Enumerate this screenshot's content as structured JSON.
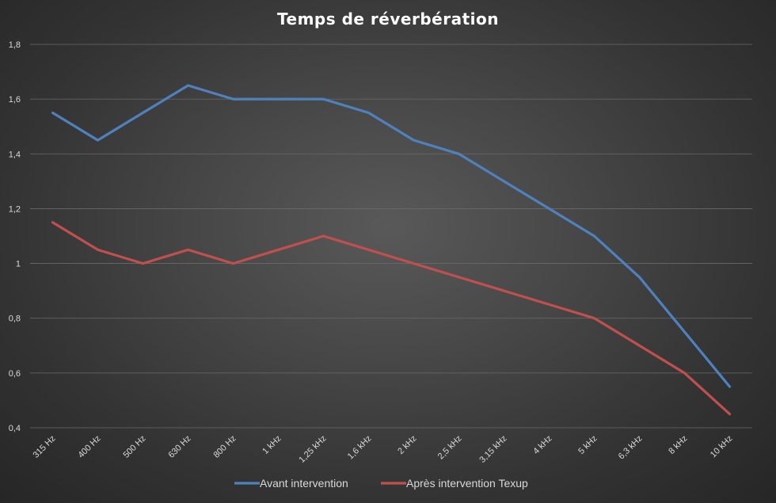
{
  "chart_data": {
    "type": "line",
    "title": "Temps de réverbération",
    "xlabel": "",
    "ylabel": "",
    "ylim": [
      0.4,
      1.8
    ],
    "yticks": [
      "0,4",
      "0,6",
      "0,8",
      "1",
      "1,2",
      "1,4",
      "1,6",
      "1,8"
    ],
    "ytick_values": [
      0.4,
      0.6,
      0.8,
      1.0,
      1.2,
      1.4,
      1.6,
      1.8
    ],
    "categories": [
      "315 Hz",
      "400 Hz",
      "500 Hz",
      "630 Hz",
      "800 Hz",
      "1 kHz",
      "1,25 kHz",
      "1,6 kHz",
      "2 kHz",
      "2,5 kHz",
      "3,15 kHz",
      "4 kHz",
      "5 kHz",
      "6,3 kHz",
      "8 kHz",
      "10 kHz"
    ],
    "grid": true,
    "legend_position": "bottom",
    "series": [
      {
        "name": "Avant intervention",
        "color": "#4f81bd",
        "values": [
          1.55,
          1.45,
          1.55,
          1.65,
          1.6,
          1.6,
          1.6,
          1.55,
          1.45,
          1.4,
          1.3,
          1.2,
          1.1,
          0.95,
          0.75,
          0.55
        ]
      },
      {
        "name": "Après intervention Texup",
        "color": "#c0504d",
        "values": [
          1.15,
          1.05,
          1.0,
          1.05,
          1.0,
          1.05,
          1.1,
          1.05,
          1.0,
          0.95,
          0.9,
          0.85,
          0.8,
          0.7,
          0.6,
          0.45
        ]
      }
    ]
  }
}
